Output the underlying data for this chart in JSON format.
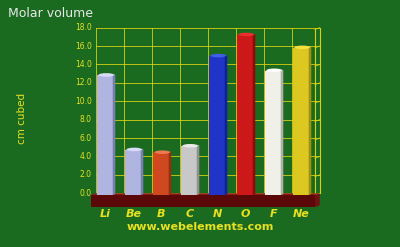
{
  "title": "Molar volume",
  "ylabel": "cm cubed",
  "website": "www.webelements.com",
  "elements": [
    "Li",
    "Be",
    "B",
    "C",
    "N",
    "O",
    "F",
    "Ne"
  ],
  "values": [
    13.0,
    4.9,
    4.6,
    5.3,
    15.1,
    17.4,
    13.5,
    16.0
  ],
  "bar_colors": [
    "#b0b4e0",
    "#b0b4e0",
    "#d04820",
    "#c8c8c8",
    "#2035c8",
    "#cc1818",
    "#f0f0e8",
    "#dcc820"
  ],
  "bar_dark_colors": [
    "#7880b0",
    "#7880b0",
    "#903010",
    "#909090",
    "#1020a0",
    "#900808",
    "#b0b0a8",
    "#a09010"
  ],
  "bar_top_colors": [
    "#d8dcf8",
    "#d8dcf8",
    "#f07850",
    "#e8e8e8",
    "#4060e8",
    "#e83030",
    "#ffffff",
    "#f0e040"
  ],
  "bg_color": "#1a6b20",
  "text_color": "#e8e020",
  "title_color": "#e8e8e8",
  "grid_color": "#d8d010",
  "base_color": "#8b1a1a",
  "base_dark_color": "#5a0808",
  "ylim_max": 18.0,
  "yticks": [
    0.0,
    2.0,
    4.0,
    6.0,
    8.0,
    10.0,
    12.0,
    14.0,
    16.0,
    18.0
  ]
}
